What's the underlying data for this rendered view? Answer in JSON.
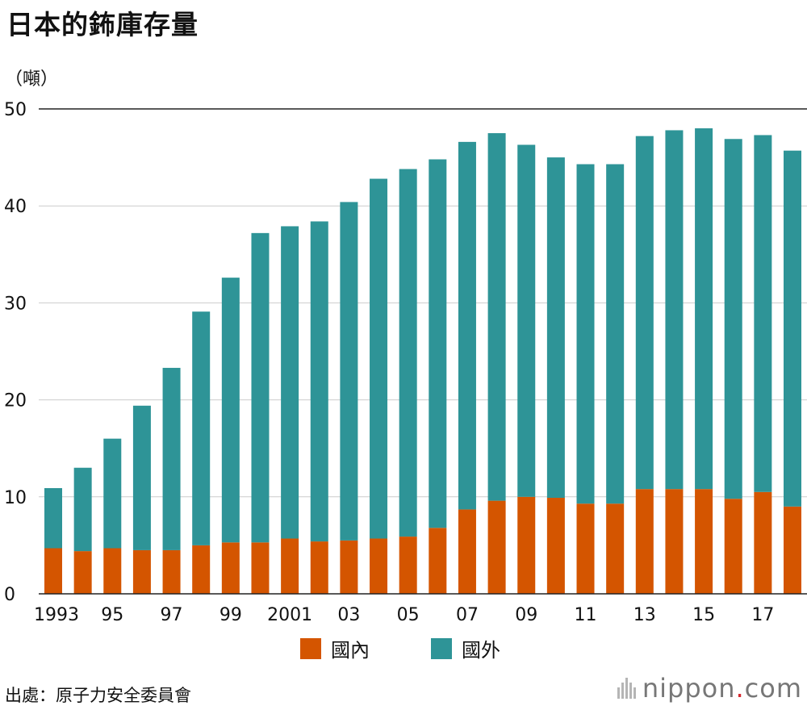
{
  "title": "日本的鈽庫存量",
  "unit": "（噸）",
  "legend": {
    "domestic": "國內",
    "overseas": "國外"
  },
  "source": "出處：原子力安全委員會",
  "brand": {
    "name": "nippon",
    "dot": ".",
    "tld": "com"
  },
  "colors": {
    "domestic": "#d45500",
    "overseas": "#2e9497",
    "grid": "#cccccc",
    "axis": "#222222"
  },
  "chart_data": {
    "type": "bar",
    "stacked": true,
    "title": "日本的鈽庫存量",
    "ylabel": "（噸）",
    "ylim": [
      0,
      50
    ],
    "yticks": [
      0,
      10,
      20,
      30,
      40,
      50
    ],
    "categories": [
      "1993",
      "1994",
      "1995",
      "1996",
      "1997",
      "1998",
      "1999",
      "2000",
      "2001",
      "2002",
      "2003",
      "2004",
      "2005",
      "2006",
      "2007",
      "2008",
      "2009",
      "2010",
      "2011",
      "2012",
      "2013",
      "2014",
      "2015",
      "2016",
      "2017",
      "2018"
    ],
    "xtick_labels": [
      "1993",
      "",
      "95",
      "",
      "97",
      "",
      "99",
      "",
      "2001",
      "",
      "03",
      "",
      "05",
      "",
      "07",
      "",
      "09",
      "",
      "11",
      "",
      "13",
      "",
      "15",
      "",
      "17",
      ""
    ],
    "series": [
      {
        "name": "國內",
        "values": [
          4.7,
          4.4,
          4.7,
          4.5,
          4.5,
          5.0,
          5.3,
          5.3,
          5.7,
          5.4,
          5.5,
          5.7,
          5.9,
          6.8,
          8.7,
          9.6,
          10.0,
          9.9,
          9.3,
          9.3,
          10.8,
          10.8,
          10.8,
          9.8,
          10.5,
          9.0
        ]
      },
      {
        "name": "國外",
        "values": [
          6.2,
          8.6,
          11.3,
          14.9,
          18.8,
          24.1,
          27.3,
          31.9,
          32.2,
          33.0,
          34.9,
          37.1,
          37.9,
          38.0,
          37.9,
          37.9,
          36.3,
          35.1,
          35.0,
          35.0,
          36.4,
          37.0,
          37.2,
          37.1,
          36.8,
          36.7
        ]
      }
    ]
  }
}
